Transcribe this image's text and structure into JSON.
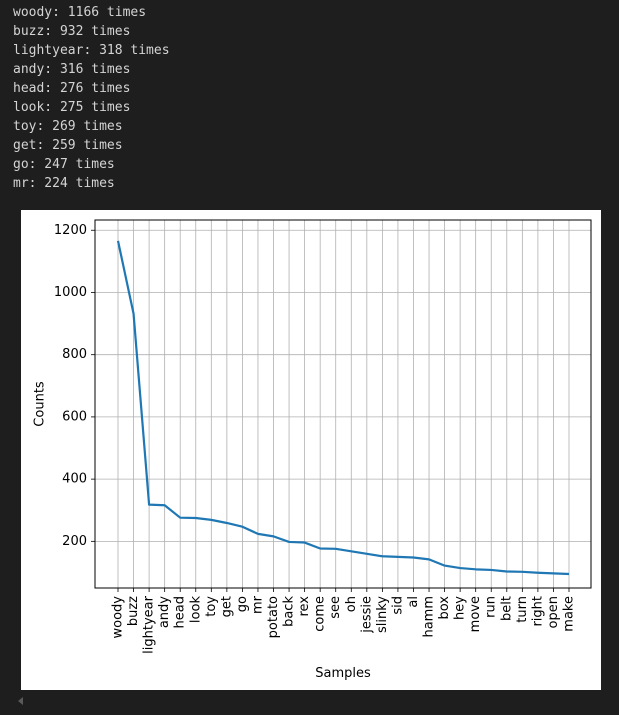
{
  "output_lines": [
    "woody: 1166 times",
    "buzz: 932 times",
    "lightyear: 318 times",
    "andy: 316 times",
    "head: 276 times",
    "look: 275 times",
    "toy: 269 times",
    "get: 259 times",
    "go: 247 times",
    "mr: 224 times"
  ],
  "chart_data": {
    "type": "line",
    "title": "",
    "xlabel": "Samples",
    "ylabel": "Counts",
    "categories": [
      "woody",
      "buzz",
      "lightyear",
      "andy",
      "head",
      "look",
      "toy",
      "get",
      "go",
      "mr",
      "potato",
      "back",
      "rex",
      "come",
      "see",
      "oh",
      "jessie",
      "slinky",
      "sid",
      "al",
      "hamm",
      "box",
      "hey",
      "move",
      "run",
      "belt",
      "turn",
      "right",
      "open",
      "make"
    ],
    "values": [
      1166,
      932,
      318,
      316,
      276,
      275,
      269,
      259,
      247,
      224,
      216,
      198,
      196,
      177,
      176,
      168,
      160,
      152,
      150,
      148,
      142,
      122,
      114,
      110,
      108,
      103,
      102,
      99,
      97,
      95
    ],
    "yticks": [
      200,
      400,
      600,
      800,
      1000,
      1200
    ],
    "ylim": [
      50,
      1233
    ],
    "grid": true,
    "line_color": "#1f77b4"
  }
}
